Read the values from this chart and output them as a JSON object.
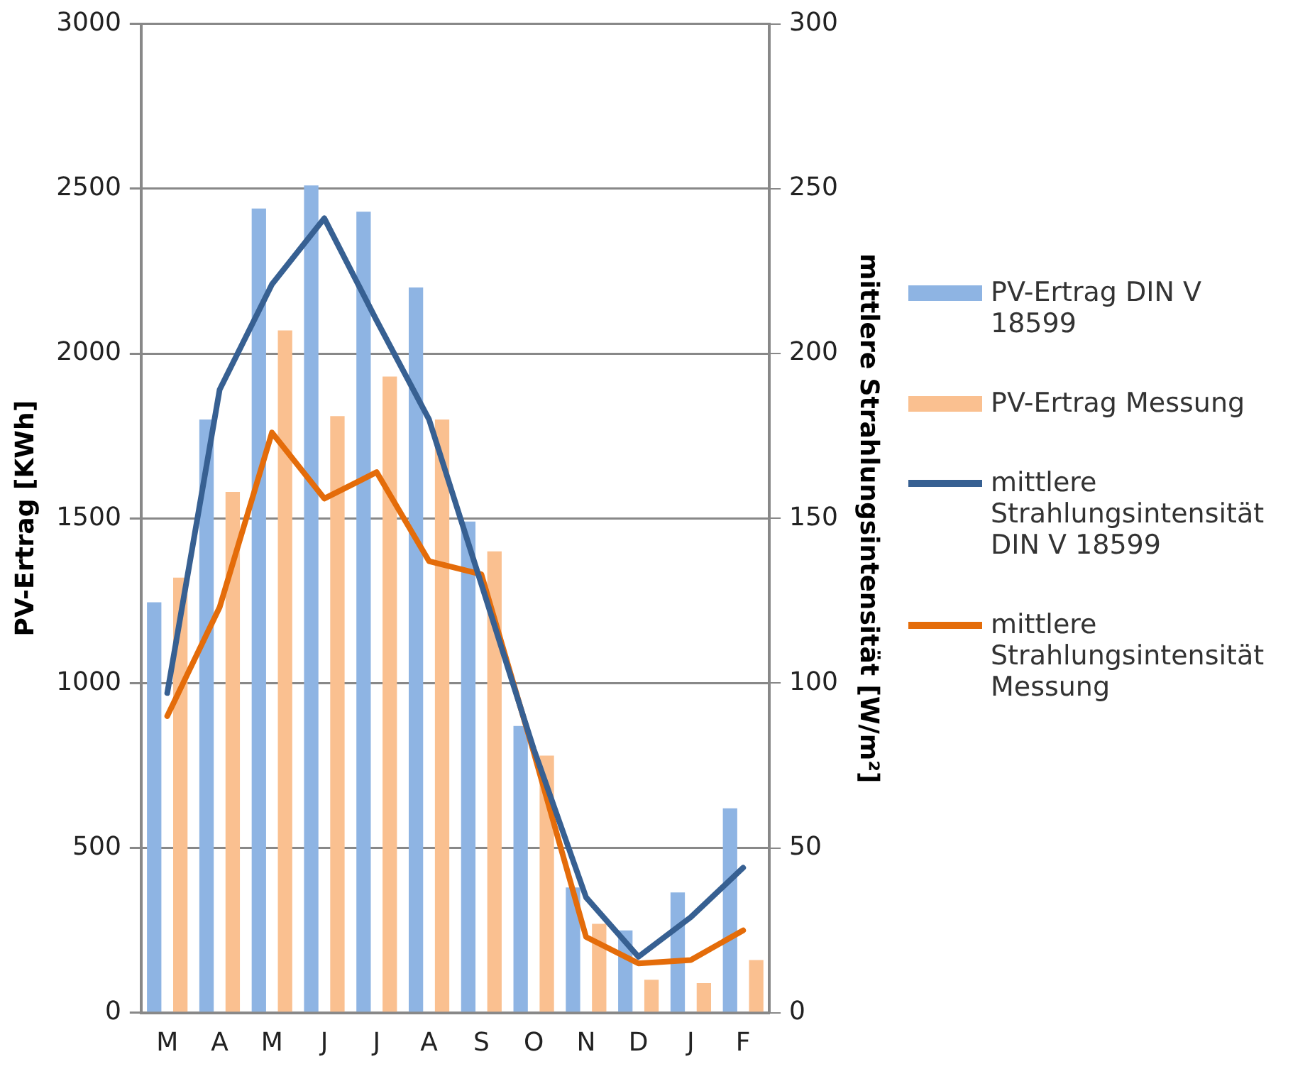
{
  "chart_data": {
    "type": "bar",
    "ylabel": "PV-Ertrag [KWh]",
    "y2label": "mittlere Strahlungsintensität [W/m²]",
    "categories": [
      "M",
      "A",
      "M",
      "J",
      "J",
      "A",
      "S",
      "O",
      "N",
      "D",
      "J",
      "F"
    ],
    "series": [
      {
        "name": "PV-Ertrag DIN V 18599",
        "color": "#8eb4e3",
        "values": [
          1245,
          1800,
          2440,
          2510,
          2430,
          2200,
          1490,
          870,
          380,
          250,
          365,
          620
        ]
      },
      {
        "name": "PV-Ertrag Messung",
        "color": "#fac090",
        "values": [
          1320,
          1580,
          2070,
          1810,
          1930,
          1800,
          1400,
          780,
          270,
          100,
          90,
          160
        ]
      },
      {
        "name": "mittlere Strahlungsintensität DIN V 18599",
        "type": "line",
        "axis": "y2",
        "color": "#376092",
        "values": [
          97,
          189,
          221,
          241,
          210,
          180,
          130,
          80,
          35,
          17,
          29,
          44
        ]
      },
      {
        "name": "mittlere Strahlungsintensität Messung",
        "type": "line",
        "axis": "y2",
        "color": "#e46c0a",
        "values": [
          90,
          123,
          176,
          156,
          164,
          137,
          133,
          79,
          23,
          15,
          16,
          25
        ]
      }
    ],
    "ylim": [
      0,
      3000
    ],
    "yticks": [
      0,
      500,
      1000,
      1500,
      2000,
      2500,
      3000
    ],
    "y2lim": [
      0,
      300
    ],
    "y2ticks": [
      0,
      50,
      100,
      150,
      200,
      250,
      300
    ],
    "grid": "y",
    "legend": "right",
    "marker": "none"
  }
}
